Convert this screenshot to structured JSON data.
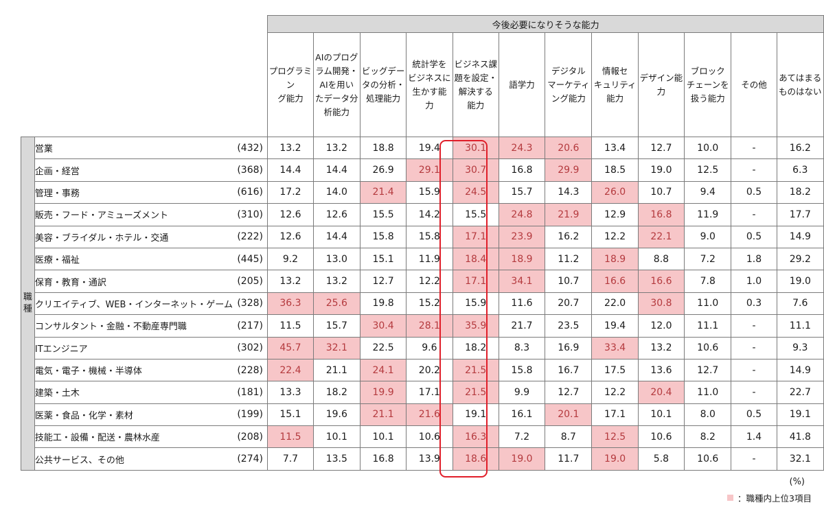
{
  "header": {
    "group_label": "今後必要になりそうな能力",
    "side_label": "職\n種",
    "columns": [
      "プログラミン\nグ能力",
      "AIのプログ\nラム開発・\nAIを用い\nたデータ分\n析能力",
      "ビッグデー\nタの分析・\n処理能力",
      "統計学を\nビジネスに\n生かす能\n力",
      "ビジネス課\n題を設定・\n解決する\n能力",
      "語学力",
      "デジタル\nマーケティ\nング能力",
      "情報セ\nキュリティ\n能力",
      "デザイン能\n力",
      "ブロック\nチェーンを\n扱う能力",
      "その他",
      "あてはまる\nものはない"
    ]
  },
  "rows": [
    {
      "label": "営業",
      "n": "(432)",
      "values": [
        "13.2",
        "13.2",
        "18.8",
        "19.4",
        "30.1",
        "24.3",
        "20.6",
        "13.4",
        "12.7",
        "10.0",
        "-",
        "16.2"
      ],
      "top3": [
        4,
        5,
        6
      ]
    },
    {
      "label": "企画・経営",
      "n": "(368)",
      "values": [
        "14.4",
        "14.4",
        "26.9",
        "29.1",
        "30.7",
        "16.8",
        "29.9",
        "18.5",
        "19.0",
        "12.5",
        "-",
        "6.3"
      ],
      "top3": [
        3,
        4,
        6
      ]
    },
    {
      "label": "管理・事務",
      "n": "(616)",
      "values": [
        "17.2",
        "14.0",
        "21.4",
        "15.9",
        "24.5",
        "15.7",
        "14.3",
        "26.0",
        "10.7",
        "9.4",
        "0.5",
        "18.2"
      ],
      "top3": [
        2,
        4,
        7
      ]
    },
    {
      "label": "販売・フード・アミューズメント",
      "n": "(310)",
      "values": [
        "12.6",
        "12.6",
        "15.5",
        "14.2",
        "15.5",
        "24.8",
        "21.9",
        "12.9",
        "16.8",
        "11.9",
        "-",
        "17.7"
      ],
      "top3": [
        5,
        6,
        8
      ]
    },
    {
      "label": "美容・ブライダル・ホテル・交通",
      "n": "(222)",
      "values": [
        "12.6",
        "14.4",
        "15.8",
        "15.8",
        "17.1",
        "23.9",
        "16.2",
        "12.2",
        "22.1",
        "9.0",
        "0.5",
        "14.9"
      ],
      "top3": [
        4,
        5,
        8
      ]
    },
    {
      "label": "医療・福祉",
      "n": "(445)",
      "values": [
        "9.2",
        "13.0",
        "15.1",
        "11.9",
        "18.4",
        "18.9",
        "11.2",
        "18.9",
        "8.8",
        "7.2",
        "1.8",
        "29.2"
      ],
      "top3": [
        4,
        5,
        7
      ]
    },
    {
      "label": "保育・教育・通訳",
      "n": "(205)",
      "values": [
        "13.2",
        "13.2",
        "12.7",
        "12.2",
        "17.1",
        "34.1",
        "10.7",
        "16.6",
        "16.6",
        "7.8",
        "1.0",
        "19.0"
      ],
      "top3": [
        4,
        5,
        7,
        8
      ]
    },
    {
      "label": "クリエイティブ、WEB・インターネット・ゲーム",
      "n": "(328)",
      "values": [
        "36.3",
        "25.6",
        "19.8",
        "15.2",
        "15.9",
        "11.6",
        "20.7",
        "22.0",
        "30.8",
        "11.0",
        "0.3",
        "7.6"
      ],
      "top3": [
        0,
        1,
        8
      ]
    },
    {
      "label": "コンサルタント・金融・不動産専門職",
      "n": "(217)",
      "values": [
        "11.5",
        "15.7",
        "30.4",
        "28.1",
        "35.9",
        "21.7",
        "23.5",
        "19.4",
        "12.0",
        "11.1",
        "-",
        "11.1"
      ],
      "top3": [
        2,
        3,
        4
      ]
    },
    {
      "label": "ITエンジニア",
      "n": "(302)",
      "values": [
        "45.7",
        "32.1",
        "22.5",
        "9.6",
        "18.2",
        "8.3",
        "16.9",
        "33.4",
        "13.2",
        "10.6",
        "-",
        "9.3"
      ],
      "top3": [
        0,
        1,
        7
      ]
    },
    {
      "label": "電気・電子・機械・半導体",
      "n": "(228)",
      "values": [
        "22.4",
        "21.1",
        "24.1",
        "20.2",
        "21.5",
        "15.8",
        "16.7",
        "17.5",
        "13.6",
        "12.7",
        "-",
        "14.9"
      ],
      "top3": [
        0,
        2,
        4
      ]
    },
    {
      "label": "建築・土木",
      "n": "(181)",
      "values": [
        "13.3",
        "18.2",
        "19.9",
        "17.1",
        "21.5",
        "9.9",
        "12.7",
        "12.2",
        "20.4",
        "11.0",
        "-",
        "22.7"
      ],
      "top3": [
        2,
        4,
        8
      ]
    },
    {
      "label": "医薬・食品・化学・素材",
      "n": "(199)",
      "values": [
        "15.1",
        "19.6",
        "21.1",
        "21.6",
        "19.1",
        "16.1",
        "20.1",
        "17.1",
        "10.1",
        "8.0",
        "0.5",
        "19.1"
      ],
      "top3": [
        2,
        3,
        6
      ]
    },
    {
      "label": "技能工・設備・配送・農林水産",
      "n": "(208)",
      "values": [
        "11.5",
        "10.1",
        "10.1",
        "10.6",
        "16.3",
        "7.2",
        "8.7",
        "12.5",
        "10.6",
        "8.2",
        "1.4",
        "41.8"
      ],
      "top3": [
        0,
        4,
        7
      ]
    },
    {
      "label": "公共サービス、その他",
      "n": "(274)",
      "values": [
        "7.7",
        "13.5",
        "16.8",
        "13.9",
        "18.6",
        "19.0",
        "11.7",
        "19.0",
        "5.8",
        "10.6",
        "-",
        "32.1"
      ],
      "top3": [
        4,
        5,
        7
      ]
    }
  ],
  "footer": {
    "unit": "(%)",
    "legend_marker": "■",
    "legend_text": "：職種内上位3項目"
  },
  "colors": {
    "highlight": "#f7c6c8",
    "frame": "#e01e29",
    "header_fill": "#d9d9d9"
  }
}
